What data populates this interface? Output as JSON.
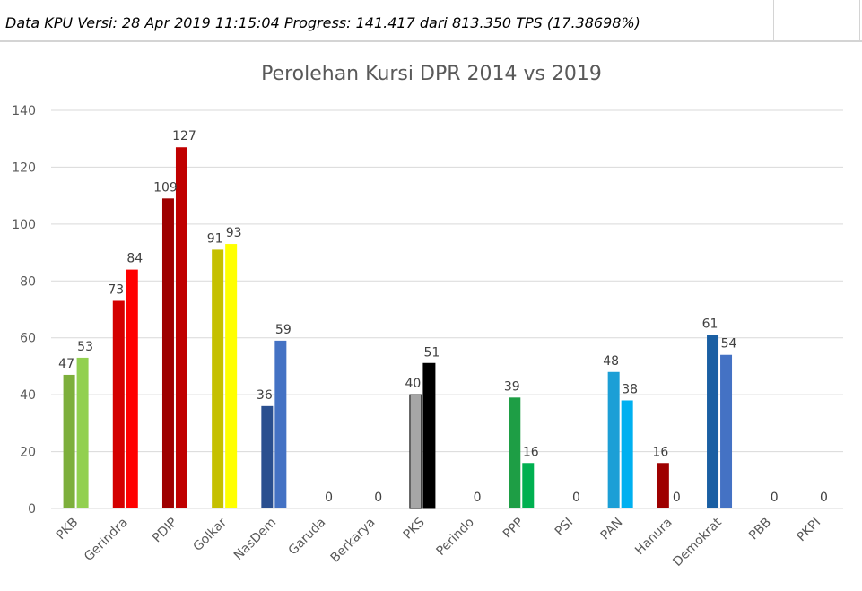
{
  "header": {
    "status_text": "Data KPU Versi: 28 Apr 2019 11:15:04 Progress: 141.417 dari 813.350 TPS (17.38698%)"
  },
  "chart_data": {
    "type": "bar",
    "title": "Perolehan Kursi DPR 2014 vs 2019",
    "xlabel": "",
    "ylabel": "",
    "ylim": [
      0,
      140
    ],
    "yticks": [
      0,
      20,
      40,
      60,
      80,
      100,
      120,
      140
    ],
    "grid": true,
    "categories": [
      "PKB",
      "Gerindra",
      "PDIP",
      "Golkar",
      "NasDem",
      "Garuda",
      "Berkarya",
      "PKS",
      "Perindo",
      "PPP",
      "PSI",
      "PAN",
      "Hanura",
      "Demokrat",
      "PBB",
      "PKPI"
    ],
    "series": [
      {
        "values": [
          47,
          73,
          109,
          91,
          36,
          0,
          0,
          40,
          0,
          39,
          0,
          48,
          16,
          61,
          0,
          0
        ],
        "colors": [
          "#7DAF3B",
          "#D40000",
          "#9E0000",
          "#C5C000",
          "#2A4F8F",
          "#999999",
          "#999999",
          "#A6A6A6",
          "#999999",
          "#1E9E45",
          "#999999",
          "#1C9FD6",
          "#9E0000",
          "#1A5FA3",
          "#999999",
          "#999999"
        ]
      },
      {
        "values": [
          53,
          84,
          127,
          93,
          59,
          0,
          0,
          51,
          0,
          16,
          0,
          38,
          0,
          54,
          0,
          0
        ],
        "colors": [
          "#92D050",
          "#FF0000",
          "#C00000",
          "#FFFF00",
          "#4472C4",
          "#999999",
          "#999999",
          "#000000",
          "#999999",
          "#00B050",
          "#999999",
          "#00B0F0",
          "#C00000",
          "#4472C4",
          "#999999",
          "#999999"
        ]
      }
    ]
  }
}
